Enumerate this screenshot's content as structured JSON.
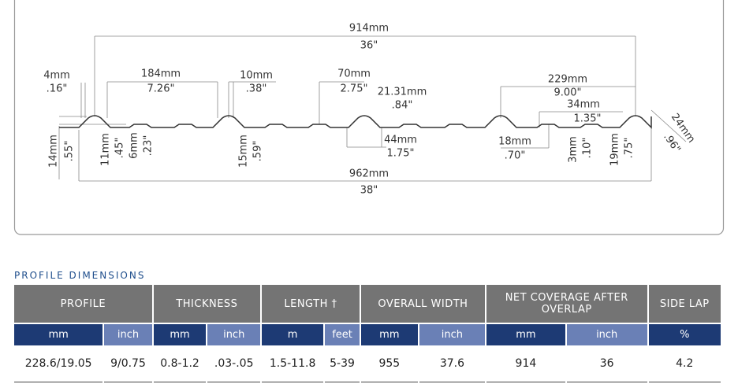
{
  "diagram": {
    "labels": [
      "914mm",
      "36\"",
      "4mm",
      ".16\"",
      "184mm",
      "7.26\"",
      "10mm",
      ".38\"",
      "70mm",
      "2.75\"",
      "21.31mm",
      ".84\"",
      "229mm",
      "9.00\"",
      "34mm",
      "1.35\"",
      "44mm",
      "1.75\"",
      "18mm",
      ".70\"",
      "962mm",
      "38\"",
      "14mm",
      ".55\"",
      "11mm",
      ".45\"",
      "6mm",
      ".23\"",
      "15mm",
      ".59\"",
      "3mm",
      ".10\"",
      "19mm",
      ".75\"",
      "24mm",
      ".96\""
    ]
  },
  "table": {
    "title": "PROFILE DIMENSIONS",
    "groups": [
      "PROFILE",
      "THICKNESS",
      "LENGTH †",
      "OVERALL WIDTH",
      "NET COVERAGE AFTER OVERLAP",
      "SIDE LAP"
    ],
    "units": [
      "mm",
      "inch",
      "mm",
      "inch",
      "m",
      "feet",
      "mm",
      "inch",
      "mm",
      "inch",
      "%"
    ],
    "row": [
      "228.6/19.05",
      "9/0.75",
      "0.8-1.2",
      ".03-.05",
      "1.5-11.8",
      "5-39",
      "955",
      "37.6",
      "914",
      "36",
      "4.2"
    ]
  }
}
